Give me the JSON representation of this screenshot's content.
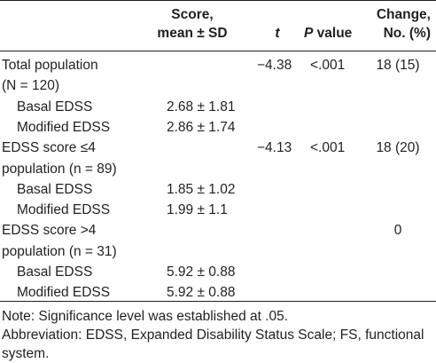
{
  "header": {
    "score_line1": "Score,",
    "score_line2": "mean ± SD",
    "t": "t",
    "p_italic": "P",
    "p_rest": " value",
    "change_line1": "Change,",
    "change_line2": "No. (%)"
  },
  "rows": [
    {
      "label": "Total population",
      "score": "",
      "t": "−4.38",
      "p": "<.001",
      "change": "18 (15)",
      "indent": false
    },
    {
      "label": "(N = 120)",
      "score": "",
      "t": "",
      "p": "",
      "change": "",
      "indent": false
    },
    {
      "label": "Basal EDSS",
      "score": "2.68 ± 1.81",
      "t": "",
      "p": "",
      "change": "",
      "indent": true
    },
    {
      "label": "Modified EDSS",
      "score": "2.86 ± 1.74",
      "t": "",
      "p": "",
      "change": "",
      "indent": true
    },
    {
      "label": "EDSS score ≤4",
      "score": "",
      "t": "−4.13",
      "p": "<.001",
      "change": "18 (20)",
      "indent": false
    },
    {
      "label": "population (n = 89)",
      "score": "",
      "t": "",
      "p": "",
      "change": "",
      "indent": false
    },
    {
      "label": "Basal EDSS",
      "score": "1.85 ± 1.02",
      "t": "",
      "p": "",
      "change": "",
      "indent": true
    },
    {
      "label": "Modified EDSS",
      "score": "1.99 ± 1.1",
      "t": "",
      "p": "",
      "change": "",
      "indent": true
    },
    {
      "label": "EDSS score >4",
      "score": "",
      "t": "",
      "p": "",
      "change": "0",
      "indent": false
    },
    {
      "label": "population (n = 31)",
      "score": "",
      "t": "",
      "p": "",
      "change": "",
      "indent": false
    },
    {
      "label": "Basal EDSS",
      "score": "5.92 ± 0.88",
      "t": "",
      "p": "",
      "change": "",
      "indent": true
    },
    {
      "label": "Modified EDSS",
      "score": "5.92 ± 0.88",
      "t": "",
      "p": "",
      "change": "",
      "indent": true
    }
  ],
  "footnotes": {
    "note": "Note: Significance level was established at .05.",
    "abbreviation": "Abbreviation: EDSS, Expanded Disability Status Scale; FS, functional system."
  }
}
